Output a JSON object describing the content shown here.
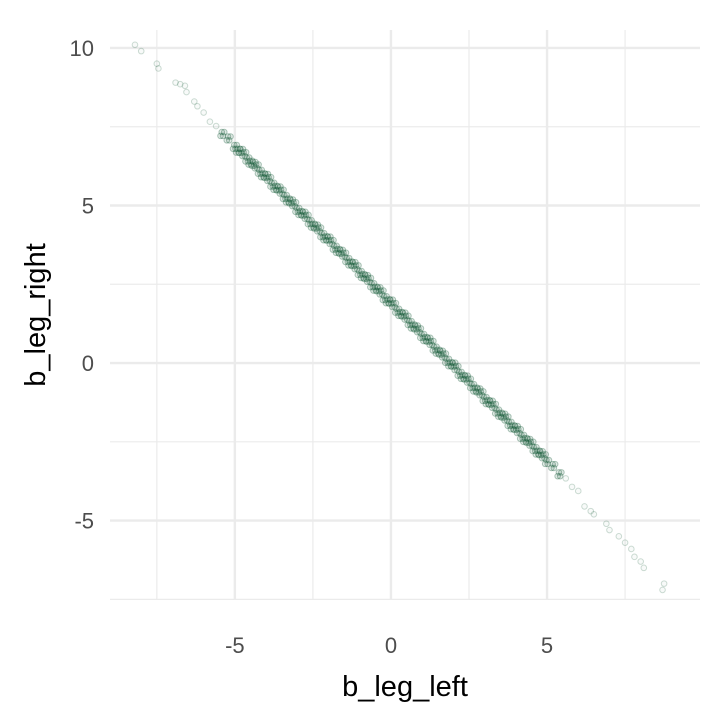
{
  "chart_data": {
    "type": "scatter",
    "title": "",
    "xlabel": "b_leg_left",
    "ylabel": "b_leg_right",
    "xlim": [
      -9.0,
      9.9
    ],
    "ylim": [
      -7.52,
      10.57
    ],
    "x_ticks": [
      -5,
      0,
      5
    ],
    "y_ticks": [
      -5,
      0,
      5,
      10
    ],
    "x_tick_labels": [
      "-5",
      "0",
      "5"
    ],
    "y_tick_labels": [
      "-5",
      "0",
      "5",
      "10"
    ],
    "minor_grid": [
      -7.5,
      -2.5,
      2.5,
      7.5
    ],
    "grid": true,
    "legend": "none",
    "marker": "open-circle",
    "point_color": "#1b5e3b",
    "point_alpha": 0.2,
    "points": [
      [
        -8.2,
        10.1
      ],
      [
        -8.0,
        9.9
      ],
      [
        -7.5,
        9.5
      ],
      [
        -7.45,
        9.35
      ],
      [
        -6.9,
        8.9
      ],
      [
        -6.75,
        8.85
      ],
      [
        -6.6,
        8.8
      ],
      [
        -6.55,
        8.6
      ],
      [
        -6.3,
        8.3
      ],
      [
        -6.2,
        8.15
      ],
      [
        -6.0,
        7.95
      ],
      [
        -5.8,
        7.66
      ],
      [
        -5.6,
        7.52
      ],
      [
        -5.4,
        7.27
      ],
      [
        -5.2,
        7.13
      ],
      [
        -5.0,
        6.86
      ],
      [
        -4.8,
        6.73
      ],
      [
        -4.6,
        6.46
      ],
      [
        -4.4,
        6.32
      ],
      [
        -4.2,
        6.07
      ],
      [
        -4.0,
        5.94
      ],
      [
        -3.8,
        5.66
      ],
      [
        -3.6,
        5.54
      ],
      [
        -3.4,
        5.27
      ],
      [
        -3.2,
        5.13
      ],
      [
        -3.0,
        4.86
      ],
      [
        -2.8,
        4.74
      ],
      [
        -2.6,
        4.47
      ],
      [
        -2.4,
        4.33
      ],
      [
        -2.2,
        4.06
      ],
      [
        -2.0,
        3.95
      ],
      [
        -1.8,
        3.66
      ],
      [
        -1.6,
        3.53
      ],
      [
        -1.4,
        3.27
      ],
      [
        -1.2,
        3.14
      ],
      [
        -1.0,
        2.86
      ],
      [
        -0.8,
        2.73
      ],
      [
        -0.6,
        2.47
      ],
      [
        -0.4,
        2.34
      ],
      [
        -0.2,
        2.06
      ],
      [
        0.0,
        1.95
      ],
      [
        0.2,
        1.66
      ],
      [
        0.4,
        1.54
      ],
      [
        0.6,
        1.27
      ],
      [
        0.8,
        1.13
      ],
      [
        1.0,
        0.86
      ],
      [
        1.2,
        0.74
      ],
      [
        1.4,
        0.46
      ],
      [
        1.6,
        0.33
      ],
      [
        1.8,
        0.07
      ],
      [
        2.0,
        -0.05
      ],
      [
        2.2,
        -0.34
      ],
      [
        2.4,
        -0.46
      ],
      [
        2.6,
        -0.73
      ],
      [
        2.8,
        -0.87
      ],
      [
        3.0,
        -1.14
      ],
      [
        3.2,
        -1.26
      ],
      [
        3.4,
        -1.54
      ],
      [
        3.6,
        -1.67
      ],
      [
        3.8,
        -1.93
      ],
      [
        4.0,
        -2.06
      ],
      [
        4.2,
        -2.34
      ],
      [
        4.4,
        -2.47
      ],
      [
        4.6,
        -2.73
      ],
      [
        4.8,
        -2.86
      ],
      [
        5.0,
        -3.14
      ],
      [
        5.2,
        -3.27
      ],
      [
        5.4,
        -3.53
      ],
      [
        5.6,
        -3.66
      ],
      [
        5.8,
        -3.93
      ],
      [
        6.0,
        -4.06
      ],
      [
        -4.9,
        6.74
      ],
      [
        -4.7,
        6.63
      ],
      [
        -4.5,
        6.36
      ],
      [
        -4.3,
        6.24
      ],
      [
        -4.1,
        5.96
      ],
      [
        -3.9,
        5.84
      ],
      [
        -3.7,
        5.56
      ],
      [
        -3.5,
        5.44
      ],
      [
        -3.3,
        5.16
      ],
      [
        -3.1,
        5.04
      ],
      [
        -2.9,
        4.76
      ],
      [
        -2.7,
        4.64
      ],
      [
        -2.5,
        4.36
      ],
      [
        -2.3,
        4.24
      ],
      [
        -2.1,
        3.96
      ],
      [
        -1.9,
        3.84
      ],
      [
        -1.7,
        3.56
      ],
      [
        -1.5,
        3.44
      ],
      [
        -1.3,
        3.16
      ],
      [
        -1.1,
        3.04
      ],
      [
        -0.9,
        2.76
      ],
      [
        -0.7,
        2.64
      ],
      [
        -0.5,
        2.36
      ],
      [
        -0.3,
        2.24
      ],
      [
        -0.1,
        1.96
      ],
      [
        0.1,
        1.84
      ],
      [
        0.3,
        1.56
      ],
      [
        0.5,
        1.44
      ],
      [
        0.7,
        1.16
      ],
      [
        0.9,
        1.04
      ],
      [
        1.1,
        0.76
      ],
      [
        1.3,
        0.64
      ],
      [
        1.5,
        0.36
      ],
      [
        1.7,
        0.24
      ],
      [
        1.9,
        -0.04
      ],
      [
        2.1,
        -0.16
      ],
      [
        2.3,
        -0.44
      ],
      [
        2.5,
        -0.56
      ],
      [
        2.7,
        -0.84
      ],
      [
        2.9,
        -0.96
      ],
      [
        3.1,
        -1.24
      ],
      [
        3.3,
        -1.36
      ],
      [
        3.5,
        -1.64
      ],
      [
        3.7,
        -1.76
      ],
      [
        3.9,
        -2.04
      ],
      [
        4.1,
        -2.16
      ],
      [
        4.3,
        -2.44
      ],
      [
        4.5,
        -2.56
      ],
      [
        4.7,
        -2.84
      ],
      [
        4.9,
        -2.96
      ],
      [
        6.2,
        -4.55
      ],
      [
        6.4,
        -4.7
      ],
      [
        6.5,
        -4.8
      ],
      [
        6.9,
        -5.1
      ],
      [
        7.0,
        -5.3
      ],
      [
        7.3,
        -5.5
      ],
      [
        7.5,
        -5.7
      ],
      [
        7.7,
        -5.9
      ],
      [
        7.8,
        -6.15
      ],
      [
        8.0,
        -6.3
      ],
      [
        8.1,
        -6.5
      ],
      [
        8.75,
        -7.0
      ],
      [
        8.7,
        -7.2
      ]
    ]
  }
}
